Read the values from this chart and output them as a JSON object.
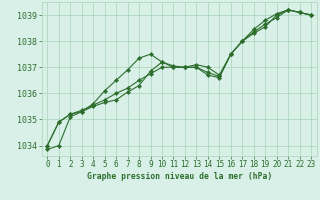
{
  "bg_color": "#d8f0e8",
  "grid_color": "#b0d8c0",
  "line_color": "#2d6e2d",
  "title": "Graphe pression niveau de la mer (hPa)",
  "xlim": [
    -0.5,
    23.5
  ],
  "ylim": [
    1033.6,
    1039.5
  ],
  "yticks": [
    1034,
    1035,
    1036,
    1037,
    1038,
    1039
  ],
  "xticks": [
    0,
    1,
    2,
    3,
    4,
    5,
    6,
    7,
    8,
    9,
    10,
    11,
    12,
    13,
    14,
    15,
    16,
    17,
    18,
    19,
    20,
    21,
    22,
    23
  ],
  "series1_x": [
    0,
    1,
    2,
    3,
    4,
    5,
    6,
    7,
    8,
    9,
    10,
    11,
    12,
    13,
    14,
    15,
    16,
    17,
    18,
    19,
    20,
    21,
    22,
    23
  ],
  "series1_y": [
    1034.0,
    1034.9,
    1035.2,
    1035.3,
    1035.6,
    1036.1,
    1036.5,
    1036.9,
    1037.35,
    1037.5,
    1037.2,
    1037.05,
    1037.0,
    1037.0,
    1036.8,
    1036.65,
    1037.5,
    1038.0,
    1038.45,
    1038.8,
    1039.05,
    1039.2,
    1039.1,
    1039.0
  ],
  "series2_x": [
    0,
    1,
    2,
    3,
    4,
    5,
    6,
    7,
    8,
    9,
    10,
    11,
    12,
    13,
    14,
    15,
    16,
    17,
    18,
    19,
    20,
    21,
    22,
    23
  ],
  "series2_y": [
    1034.0,
    1034.9,
    1035.2,
    1035.35,
    1035.55,
    1035.75,
    1036.0,
    1036.2,
    1036.5,
    1036.75,
    1037.0,
    1037.0,
    1037.0,
    1037.0,
    1036.7,
    1036.6,
    1037.5,
    1038.0,
    1038.3,
    1038.55,
    1039.0,
    1039.2,
    1039.1,
    1039.0
  ],
  "series3_x": [
    0,
    1,
    2,
    3,
    4,
    5,
    6,
    7,
    8,
    9,
    10,
    11,
    12,
    13,
    14,
    15,
    16,
    17,
    18,
    19,
    20,
    21,
    22,
    23
  ],
  "series3_y": [
    1033.85,
    1034.0,
    1035.1,
    1035.3,
    1035.5,
    1035.65,
    1035.75,
    1036.05,
    1036.3,
    1036.85,
    1037.2,
    1037.0,
    1037.0,
    1037.1,
    1037.0,
    1036.7,
    1037.5,
    1038.0,
    1038.35,
    1038.65,
    1038.9,
    1039.2,
    1039.1,
    1039.0
  ],
  "ylabel_fontsize": 6.0,
  "xlabel_fontsize": 5.5,
  "title_fontsize": 5.8
}
